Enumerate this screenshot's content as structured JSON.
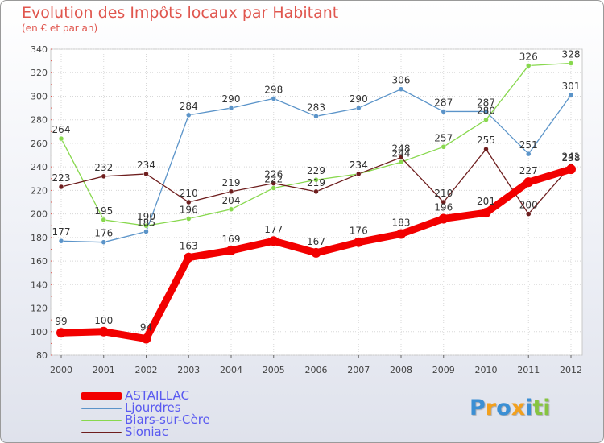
{
  "chart_data": {
    "type": "line",
    "title": "Evolution des Impôts locaux par Habitant",
    "subtitle": "(en € et par an)",
    "xlabel": "",
    "ylabel": "",
    "ylim": [
      80,
      340
    ],
    "yticks": [
      80,
      100,
      120,
      140,
      160,
      180,
      200,
      220,
      240,
      260,
      280,
      300,
      320,
      340
    ],
    "categories": [
      "2000",
      "2001",
      "2002",
      "2003",
      "2004",
      "2005",
      "2006",
      "2007",
      "2008",
      "2009",
      "2010",
      "2011",
      "2012"
    ],
    "grid": true,
    "series": [
      {
        "name": "Ljourdres",
        "color": "#5b94c9",
        "values": [
          177,
          176,
          185,
          284,
          290,
          298,
          283,
          290,
          306,
          287,
          287,
          251,
          301
        ]
      },
      {
        "name": "Biars-sur-Cère",
        "color": "#88d84e",
        "values": [
          264,
          195,
          190,
          196,
          204,
          222,
          229,
          234,
          244,
          257,
          280,
          326,
          328
        ]
      },
      {
        "name": "Sioniac",
        "color": "#6e1e1e",
        "values": [
          223,
          232,
          234,
          210,
          219,
          226,
          219,
          234,
          248,
          210,
          255,
          200,
          241
        ]
      },
      {
        "name": "ASTAILLAC",
        "color": "#f20000",
        "values": [
          99,
          100,
          94,
          163,
          169,
          177,
          167,
          176,
          183,
          196,
          201,
          227,
          238
        ]
      }
    ],
    "legend": [
      "ASTAILLAC",
      "Ljourdres",
      "Biars-sur-Cère",
      "Sioniac"
    ]
  },
  "logo": {
    "text": "Proxiti",
    "letters": [
      "P",
      "r",
      "o",
      "x",
      "i",
      "t",
      "i"
    ],
    "colors": [
      "#3b8fd4",
      "#f2a01e",
      "#3b8fd4",
      "#f2a01e",
      "#3b8fd4",
      "#86c440",
      "#86c440"
    ]
  }
}
